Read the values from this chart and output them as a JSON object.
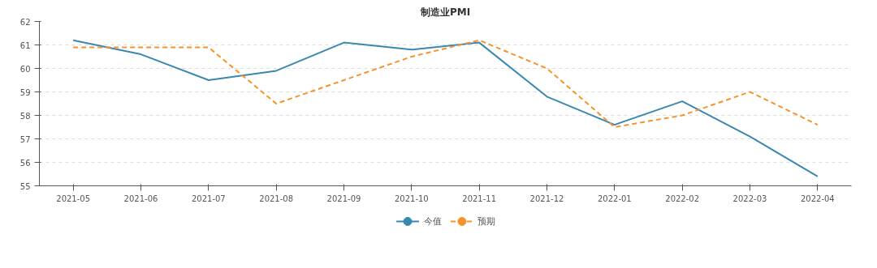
{
  "chart_data": {
    "type": "line",
    "title": "制造业PMI",
    "categories": [
      "2021-05",
      "2021-06",
      "2021-07",
      "2021-08",
      "2021-09",
      "2021-10",
      "2021-11",
      "2021-12",
      "2022-01",
      "2022-02",
      "2022-03",
      "2022-04"
    ],
    "series": [
      {
        "name": "今值",
        "color": "#3a87b0",
        "line_style": "solid",
        "values": [
          61.2,
          60.6,
          59.5,
          59.9,
          61.1,
          60.8,
          61.1,
          58.8,
          57.6,
          58.6,
          57.1,
          55.4
        ]
      },
      {
        "name": "预期",
        "color": "#f7922a",
        "line_style": "dashed",
        "values": [
          60.9,
          60.9,
          60.9,
          58.5,
          59.5,
          60.5,
          61.2,
          60.0,
          57.5,
          58.0,
          59.0,
          57.6
        ]
      }
    ],
    "ylim": [
      55,
      62
    ],
    "yticks": [
      55,
      56,
      57,
      58,
      59,
      60,
      61,
      62
    ],
    "grid": "y",
    "legend": "bottom",
    "marker": "none"
  }
}
